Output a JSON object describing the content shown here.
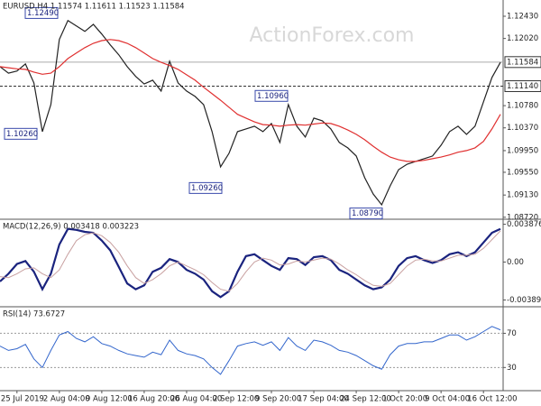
{
  "chart_data": [
    {
      "type": "line",
      "title": "EURUSD,H4 1.11574 1.11611 1.11523 1.11584",
      "watermark": "ActionForex.com",
      "series": [
        {
          "color": "#222222",
          "values": [
            1.115,
            1.1138,
            1.1142,
            1.1155,
            1.112,
            1.103,
            1.108,
            1.12,
            1.1235,
            1.1225,
            1.1215,
            1.1228,
            1.121,
            1.119,
            1.1172,
            1.115,
            1.1132,
            1.1118,
            1.1125,
            1.1105,
            1.116,
            1.112,
            1.1105,
            1.1095,
            1.108,
            1.103,
            1.0965,
            1.099,
            1.103,
            1.1035,
            1.104,
            1.103,
            1.1045,
            1.101,
            1.108,
            1.104,
            1.102,
            1.1055,
            1.105,
            1.1035,
            1.101,
            1.1,
            1.0985,
            1.0945,
            1.0915,
            1.0895,
            1.093,
            1.096,
            1.097,
            1.0975,
            1.098,
            1.0985,
            1.1005,
            1.103,
            1.104,
            1.1025,
            1.104,
            1.1085,
            1.113,
            1.1158
          ]
        },
        {
          "color": "#e03030",
          "values": [
            1.115,
            1.1148,
            1.1146,
            1.1145,
            1.114,
            1.1136,
            1.1138,
            1.115,
            1.1165,
            1.1175,
            1.1185,
            1.1193,
            1.1198,
            1.12,
            1.1198,
            1.1193,
            1.1185,
            1.1175,
            1.1165,
            1.1158,
            1.1152,
            1.1145,
            1.1135,
            1.1125,
            1.1112,
            1.11,
            1.1088,
            1.1075,
            1.1062,
            1.1055,
            1.1048,
            1.1043,
            1.1042,
            1.104,
            1.1042,
            1.1043,
            1.1042,
            1.1044,
            1.1046,
            1.1045,
            1.104,
            1.1033,
            1.1025,
            1.1015,
            1.1003,
            1.0992,
            1.0983,
            1.0978,
            1.0975,
            1.0975,
            1.0977,
            1.098,
            1.0983,
            1.0987,
            1.0992,
            1.0995,
            1.1,
            1.1012,
            1.1035,
            1.1062
          ]
        }
      ],
      "ylim": [
        1.087,
        1.1273
      ],
      "yticks": [
        {
          "value": 1.1243,
          "label": "1.12430"
        },
        {
          "value": 1.1202,
          "label": "1.12020"
        },
        {
          "value": 1.1078,
          "label": "1.10780"
        },
        {
          "value": 1.1037,
          "label": "1.10370"
        },
        {
          "value": 1.0995,
          "label": "1.09950"
        },
        {
          "value": 1.0955,
          "label": "1.09550"
        },
        {
          "value": 1.0913,
          "label": "1.09130"
        },
        {
          "value": 1.0872,
          "label": "1.08720"
        }
      ],
      "levels": [
        {
          "value": 1.11584,
          "label": "1.11584",
          "style": "solid"
        },
        {
          "value": 1.1114,
          "label": "1.11140",
          "style": "dashed"
        }
      ],
      "annotations": [
        {
          "value": 1.1249,
          "label": "1.12490"
        },
        {
          "value": 1.1026,
          "label": "1.10260"
        },
        {
          "value": 1.0926,
          "label": "1.09260"
        },
        {
          "value": 1.1096,
          "label": "1.10960"
        },
        {
          "value": 1.0879,
          "label": "1.08790"
        }
      ]
    },
    {
      "type": "line",
      "title": "MACD(12,26,9) 0.003418 0.003223",
      "series": [
        {
          "color": "#1a237e",
          "values": [
            -0.002,
            -0.0012,
            -0.0002,
            0.0001,
            -0.001,
            -0.0028,
            -0.0012,
            0.0018,
            0.0034,
            0.0033,
            0.0031,
            0.003,
            0.0022,
            0.0012,
            -0.0005,
            -0.0022,
            -0.0028,
            -0.0024,
            -0.001,
            -0.0006,
            0.0003,
            0.0,
            -0.0008,
            -0.0012,
            -0.0018,
            -0.003,
            -0.0036,
            -0.003,
            -0.001,
            0.0006,
            0.0008,
            0.0002,
            -0.0004,
            -0.0008,
            0.0004,
            0.0003,
            -0.0003,
            0.0005,
            0.0006,
            0.0002,
            -0.0008,
            -0.0012,
            -0.0018,
            -0.0024,
            -0.0028,
            -0.0026,
            -0.0018,
            -0.0004,
            0.0004,
            0.0006,
            0.0002,
            -0.0001,
            0.0002,
            0.0008,
            0.001,
            0.0006,
            0.001,
            0.002,
            0.003,
            0.0034
          ]
        },
        {
          "color": "#c8a0a0",
          "values": [
            -0.0015,
            -0.0016,
            -0.0012,
            -0.0007,
            -0.0006,
            -0.0012,
            -0.0016,
            -0.0008,
            0.0008,
            0.0022,
            0.0028,
            0.003,
            0.0027,
            0.002,
            0.001,
            -0.0004,
            -0.0016,
            -0.0022,
            -0.0018,
            -0.0012,
            -0.0004,
            0.0,
            -0.0004,
            -0.0008,
            -0.0013,
            -0.0021,
            -0.0028,
            -0.003,
            -0.0022,
            -0.001,
            0.0,
            0.0004,
            0.0002,
            -0.0003,
            -0.0002,
            0.0001,
            0.0,
            0.0002,
            0.0004,
            0.0003,
            -0.0002,
            -0.0008,
            -0.0013,
            -0.0019,
            -0.0024,
            -0.0025,
            -0.0022,
            -0.0013,
            -0.0004,
            0.0002,
            0.0003,
            0.0001,
            0.0001,
            0.0004,
            0.0007,
            0.0007,
            0.0008,
            0.0014,
            0.0023,
            0.0032
          ]
        }
      ],
      "ylim": [
        -0.0045,
        0.0043
      ],
      "yticks": [
        {
          "value": 0.003876,
          "label": "0.003876"
        },
        {
          "value": 0,
          "label": "0.00"
        },
        {
          "value": -0.003899,
          "label": "-0.003899"
        }
      ]
    },
    {
      "type": "line",
      "title": "RSI(14) 73.6727",
      "categories": [
        null,
        null,
        "25 Jul 2019",
        null,
        null,
        null,
        null,
        "2 Aug 04:00",
        null,
        null,
        null,
        null,
        "9 Aug 12:00",
        null,
        null,
        null,
        null,
        "16 Aug 20:00",
        null,
        null,
        null,
        null,
        "26 Aug 04:00",
        null,
        null,
        null,
        null,
        "2 Sep 12:00",
        null,
        null,
        null,
        null,
        "9 Sep 20:00",
        null,
        null,
        null,
        null,
        "17 Sep 04:00",
        null,
        null,
        null,
        null,
        "24 Sep 12:00",
        null,
        null,
        null,
        null,
        "1 Oct 20:00",
        null,
        null,
        null,
        null,
        "9 Oct 04:00",
        null,
        null,
        null,
        null,
        "16 Oct 12:00",
        null,
        null
      ],
      "series": [
        {
          "color": "#3366cc",
          "values": [
            55,
            50,
            52,
            57,
            40,
            30,
            50,
            68,
            72,
            64,
            60,
            66,
            58,
            55,
            50,
            46,
            44,
            42,
            48,
            45,
            62,
            50,
            46,
            44,
            40,
            30,
            22,
            38,
            55,
            58,
            60,
            56,
            60,
            50,
            65,
            55,
            50,
            62,
            60,
            56,
            50,
            48,
            44,
            38,
            32,
            28,
            45,
            55,
            58,
            58,
            60,
            60,
            64,
            68,
            68,
            62,
            66,
            72,
            78,
            74
          ]
        }
      ],
      "ylim": [
        5,
        100
      ],
      "yticks": [
        70,
        30
      ],
      "grid": "dashed"
    }
  ]
}
